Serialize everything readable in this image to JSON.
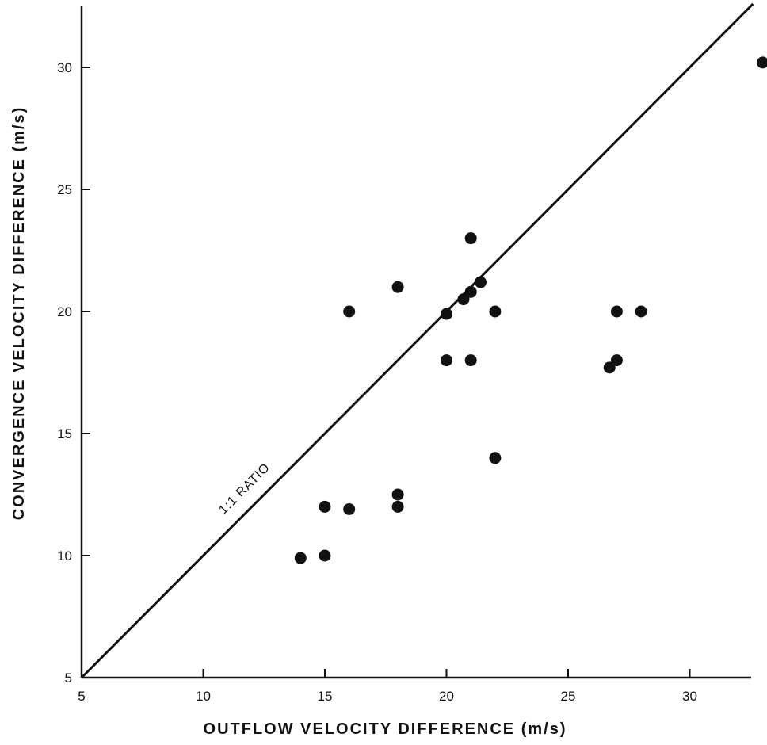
{
  "chart_data": {
    "type": "scatter",
    "title": "",
    "xlabel": "OUTFLOW VELOCITY DIFFERENCE (m/s)",
    "ylabel": "CONVERGENCE VELOCITY DIFFERENCE (m/s)",
    "xlim": [
      5,
      32.5
    ],
    "ylim": [
      5,
      32.5
    ],
    "x_ticks": [
      5,
      10,
      15,
      20,
      25,
      30
    ],
    "y_ticks": [
      5,
      10,
      15,
      20,
      25,
      30
    ],
    "x_tick_labels": [
      "5",
      "10",
      "15",
      "20",
      "25",
      "30"
    ],
    "y_tick_labels": [
      "5",
      "10",
      "15",
      "20",
      "25",
      "30"
    ],
    "grid": false,
    "legend": "none",
    "reference_line": {
      "label": "1:1 RATIO",
      "slope": 1,
      "intercept": 0
    },
    "series": [
      {
        "points": [
          [
            14,
            9.9
          ],
          [
            15,
            10.0
          ],
          [
            15,
            12.0
          ],
          [
            16,
            11.9
          ],
          [
            18,
            12.0
          ],
          [
            18,
            12.5
          ],
          [
            16,
            20.0
          ],
          [
            18,
            21.0
          ],
          [
            20,
            19.9
          ],
          [
            20,
            18.0
          ],
          [
            20.7,
            20.5
          ],
          [
            21,
            20.8
          ],
          [
            21.4,
            21.2
          ],
          [
            21,
            23.0
          ],
          [
            21,
            18.0
          ],
          [
            22,
            20.0
          ],
          [
            22,
            14.0
          ],
          [
            26.7,
            17.7
          ],
          [
            27,
            18.0
          ],
          [
            27,
            20.0
          ],
          [
            28,
            20.0
          ],
          [
            33,
            30.2
          ]
        ]
      }
    ],
    "colors": {
      "marker": "#111111",
      "line": "#111111",
      "axis": "#111111"
    }
  }
}
